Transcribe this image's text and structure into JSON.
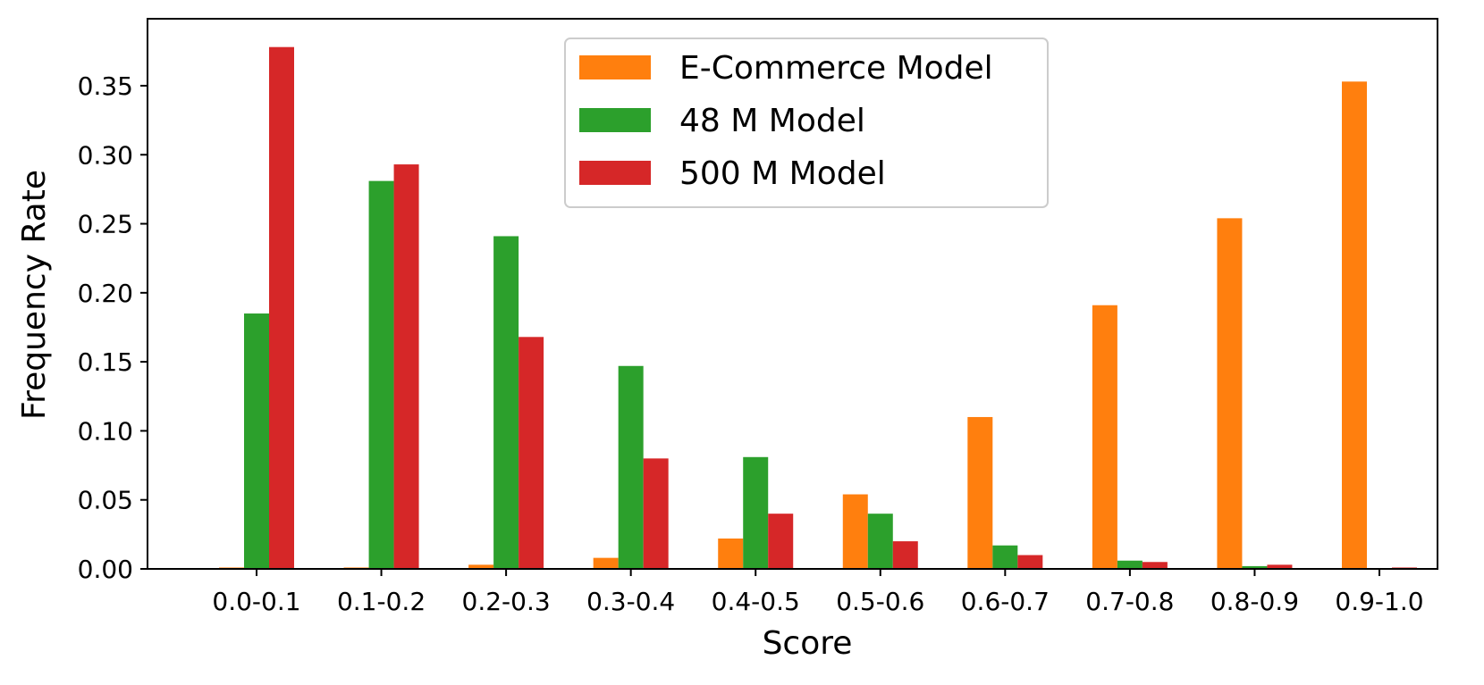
{
  "chart_data": {
    "type": "bar",
    "title": "",
    "xlabel": "Score",
    "ylabel": "Frequency Rate",
    "categories": [
      "0.0-0.1",
      "0.1-0.2",
      "0.2-0.3",
      "0.3-0.4",
      "0.4-0.5",
      "0.5-0.6",
      "0.6-0.7",
      "0.7-0.8",
      "0.8-0.9",
      "0.9-1.0"
    ],
    "series": [
      {
        "name": "E-Commerce Model",
        "color": "#ff7f0e",
        "values": [
          0.001,
          0.001,
          0.003,
          0.008,
          0.022,
          0.054,
          0.11,
          0.191,
          0.254,
          0.353
        ]
      },
      {
        "name": "48 M Model",
        "color": "#2ca02c",
        "values": [
          0.185,
          0.281,
          0.241,
          0.147,
          0.081,
          0.04,
          0.017,
          0.006,
          0.002,
          0.0
        ]
      },
      {
        "name": "500 M Model",
        "color": "#d62728",
        "values": [
          0.378,
          0.293,
          0.168,
          0.08,
          0.04,
          0.02,
          0.01,
          0.005,
          0.003,
          0.001
        ]
      }
    ],
    "ylim": [
      0,
      0.3985
    ],
    "yticks": [
      "0.00",
      "0.05",
      "0.10",
      "0.15",
      "0.20",
      "0.25",
      "0.30",
      "0.35"
    ],
    "grid": false,
    "legend": {
      "position": "top-center"
    }
  }
}
